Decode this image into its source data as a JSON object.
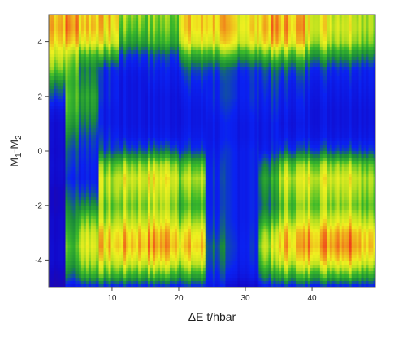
{
  "chart_data": {
    "type": "heatmap",
    "xlabel": "ΔE t/hbar",
    "ylabel_main": "M",
    "ylabel_sub1": "1",
    "ylabel_sep": "-M",
    "ylabel_sub2": "2",
    "xlim": [
      0.5,
      49.5
    ],
    "ylim": [
      -5,
      5
    ],
    "xticks": [
      10,
      20,
      30,
      40
    ],
    "yticks": [
      -4,
      -2,
      0,
      2,
      4
    ],
    "grid": false,
    "legend": "none",
    "colormap": [
      "#3b0a75",
      "#1208c8",
      "#0a22f2",
      "#1a8a3a",
      "#3ab82a",
      "#b8e020",
      "#f0f020",
      "#f0a01c",
      "#f0401a"
    ],
    "value_range": [
      0,
      1
    ],
    "y_grid": [
      -5,
      -4.5,
      -4,
      -3.5,
      -3,
      -2.5,
      -2,
      -1.5,
      -1,
      -0.5,
      0,
      0.5,
      1,
      1.5,
      2,
      2.5,
      3,
      3.5,
      4,
      4.5,
      5
    ],
    "x_segments": [
      {
        "x_range": [
          0.5,
          3
        ],
        "values": [
          0.1,
          0.12,
          0.15,
          0.15,
          0.14,
          0.14,
          0.12,
          0.12,
          0.15,
          0.16,
          0.15,
          0.16,
          0.16,
          0.2,
          0.3,
          0.4,
          0.58,
          0.7,
          0.82,
          0.88,
          0.86
        ]
      },
      {
        "x_range": [
          3,
          5
        ],
        "values": [
          0.2,
          0.35,
          0.45,
          0.5,
          0.45,
          0.4,
          0.35,
          0.3,
          0.25,
          0.28,
          0.3,
          0.35,
          0.42,
          0.48,
          0.5,
          0.48,
          0.52,
          0.6,
          0.82,
          0.9,
          0.88
        ]
      },
      {
        "x_range": [
          5,
          8
        ],
        "values": [
          0.24,
          0.5,
          0.65,
          0.72,
          0.68,
          0.55,
          0.4,
          0.3,
          0.24,
          0.25,
          0.27,
          0.3,
          0.36,
          0.42,
          0.45,
          0.4,
          0.38,
          0.5,
          0.75,
          0.84,
          0.82
        ]
      },
      {
        "x_range": [
          8,
          11
        ],
        "values": [
          0.24,
          0.52,
          0.7,
          0.8,
          0.76,
          0.62,
          0.55,
          0.62,
          0.64,
          0.52,
          0.3,
          0.25,
          0.22,
          0.22,
          0.24,
          0.24,
          0.26,
          0.45,
          0.7,
          0.78,
          0.8
        ]
      },
      {
        "x_range": [
          11,
          15
        ],
        "values": [
          0.24,
          0.52,
          0.74,
          0.84,
          0.8,
          0.66,
          0.58,
          0.64,
          0.7,
          0.58,
          0.32,
          0.22,
          0.2,
          0.2,
          0.2,
          0.2,
          0.22,
          0.28,
          0.45,
          0.55,
          0.6
        ]
      },
      {
        "x_range": [
          15,
          20
        ],
        "values": [
          0.24,
          0.54,
          0.78,
          0.88,
          0.84,
          0.7,
          0.62,
          0.68,
          0.74,
          0.62,
          0.34,
          0.22,
          0.2,
          0.2,
          0.2,
          0.22,
          0.24,
          0.3,
          0.48,
          0.55,
          0.58
        ]
      },
      {
        "x_range": [
          20,
          24
        ],
        "values": [
          0.24,
          0.48,
          0.7,
          0.8,
          0.74,
          0.58,
          0.48,
          0.55,
          0.62,
          0.5,
          0.28,
          0.22,
          0.2,
          0.2,
          0.22,
          0.25,
          0.3,
          0.45,
          0.7,
          0.78,
          0.78
        ]
      },
      {
        "x_range": [
          24,
          27
        ],
        "values": [
          0.22,
          0.28,
          0.32,
          0.34,
          0.3,
          0.28,
          0.26,
          0.26,
          0.27,
          0.26,
          0.24,
          0.22,
          0.22,
          0.24,
          0.26,
          0.26,
          0.3,
          0.48,
          0.74,
          0.82,
          0.82
        ]
      },
      {
        "x_range": [
          27,
          32
        ],
        "values": [
          0.14,
          0.22,
          0.25,
          0.26,
          0.25,
          0.24,
          0.24,
          0.24,
          0.24,
          0.24,
          0.24,
          0.22,
          0.22,
          0.24,
          0.26,
          0.26,
          0.28,
          0.46,
          0.72,
          0.78,
          0.76
        ]
      },
      {
        "x_range": [
          32,
          35
        ],
        "values": [
          0.22,
          0.42,
          0.58,
          0.66,
          0.6,
          0.45,
          0.36,
          0.4,
          0.44,
          0.36,
          0.24,
          0.22,
          0.22,
          0.24,
          0.26,
          0.28,
          0.32,
          0.52,
          0.8,
          0.86,
          0.84
        ]
      },
      {
        "x_range": [
          35,
          39
        ],
        "values": [
          0.24,
          0.52,
          0.74,
          0.84,
          0.8,
          0.64,
          0.55,
          0.62,
          0.68,
          0.56,
          0.3,
          0.22,
          0.2,
          0.22,
          0.24,
          0.26,
          0.32,
          0.52,
          0.8,
          0.86,
          0.84
        ]
      },
      {
        "x_range": [
          39,
          43
        ],
        "values": [
          0.24,
          0.55,
          0.8,
          0.9,
          0.86,
          0.7,
          0.6,
          0.66,
          0.72,
          0.6,
          0.32,
          0.22,
          0.2,
          0.2,
          0.22,
          0.24,
          0.28,
          0.45,
          0.68,
          0.75,
          0.74
        ]
      },
      {
        "x_range": [
          43,
          47
        ],
        "values": [
          0.24,
          0.58,
          0.84,
          0.95,
          0.9,
          0.74,
          0.62,
          0.68,
          0.74,
          0.62,
          0.32,
          0.22,
          0.2,
          0.2,
          0.22,
          0.24,
          0.28,
          0.44,
          0.66,
          0.72,
          0.7
        ]
      },
      {
        "x_range": [
          47,
          49.5
        ],
        "values": [
          0.24,
          0.52,
          0.76,
          0.86,
          0.82,
          0.66,
          0.56,
          0.62,
          0.66,
          0.55,
          0.3,
          0.22,
          0.2,
          0.2,
          0.22,
          0.24,
          0.26,
          0.4,
          0.6,
          0.66,
          0.66
        ]
      }
    ]
  }
}
